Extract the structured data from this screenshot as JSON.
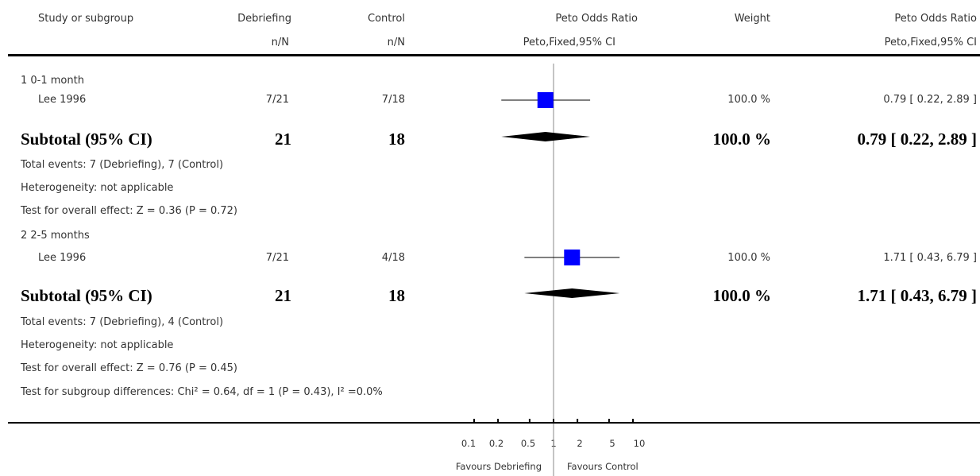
{
  "header": {
    "study": "Study or subgroup",
    "debriefing": "Debriefing",
    "debriefing_sub": "n/N",
    "control": "Control",
    "control_sub": "n/N",
    "or": "Peto Odds Ratio",
    "or_sub": "Peto,Fixed,95% CI",
    "weight": "Weight",
    "or2": "Peto Odds Ratio",
    "or2_sub": "Peto,Fixed,95% CI"
  },
  "groups": [
    {
      "title": "1 0-1 month",
      "study": {
        "name": "Lee 1996",
        "debriefing": "7/21",
        "control": "7/18",
        "weight": "100.0 %",
        "ci": "0.79 [ 0.22, 2.89 ]"
      },
      "subtotal": {
        "label": "Subtotal (95% CI)",
        "debriefing": "21",
        "control": "18",
        "weight": "100.0 %",
        "ci": "0.79 [ 0.22, 2.89 ]"
      },
      "notes": [
        "Total events: 7 (Debriefing), 7 (Control)",
        "Heterogeneity: not applicable",
        "Test for overall effect: Z = 0.36 (P = 0.72)"
      ]
    },
    {
      "title": "2 2-5 months",
      "study": {
        "name": "Lee 1996",
        "debriefing": "7/21",
        "control": "4/18",
        "weight": "100.0 %",
        "ci": "1.71 [ 0.43, 6.79 ]"
      },
      "subtotal": {
        "label": "Subtotal (95% CI)",
        "debriefing": "21",
        "control": "18",
        "weight": "100.0 %",
        "ci": "1.71 [ 0.43, 6.79 ]"
      },
      "notes": [
        "Total events: 7 (Debriefing), 4 (Control)",
        "Heterogeneity: not applicable",
        "Test for overall effect: Z = 0.76 (P = 0.45)"
      ]
    }
  ],
  "subgroup_test": "Test for subgroup differences: Chi² = 0.64, df = 1 (P = 0.43), I² =0.0%",
  "axis": {
    "ticks": [
      "0.1",
      "0.2",
      "0.5",
      "1",
      "2",
      "5",
      "10"
    ],
    "favours_left": "Favours Debriefing",
    "favours_right": "Favours Control"
  },
  "chart_data": {
    "type": "forest",
    "scale": "log",
    "xlim": [
      0.1,
      10
    ],
    "tick_values": [
      0.1,
      0.2,
      0.5,
      1,
      2,
      5,
      10
    ],
    "studies": [
      {
        "group": "1 0-1 month",
        "name": "Lee 1996",
        "or": 0.79,
        "ci_low": 0.22,
        "ci_high": 2.89,
        "weight": 100.0
      },
      {
        "group": "2 2-5 months",
        "name": "Lee 1996",
        "or": 1.71,
        "ci_low": 0.43,
        "ci_high": 6.79,
        "weight": 100.0
      }
    ],
    "subtotals": [
      {
        "group": "1 0-1 month",
        "or": 0.79,
        "ci_low": 0.22,
        "ci_high": 2.89
      },
      {
        "group": "2 2-5 months",
        "or": 1.71,
        "ci_low": 0.43,
        "ci_high": 6.79
      }
    ],
    "colors": {
      "box": "#0000ff",
      "diamond": "#000000",
      "line": "#000000"
    }
  }
}
